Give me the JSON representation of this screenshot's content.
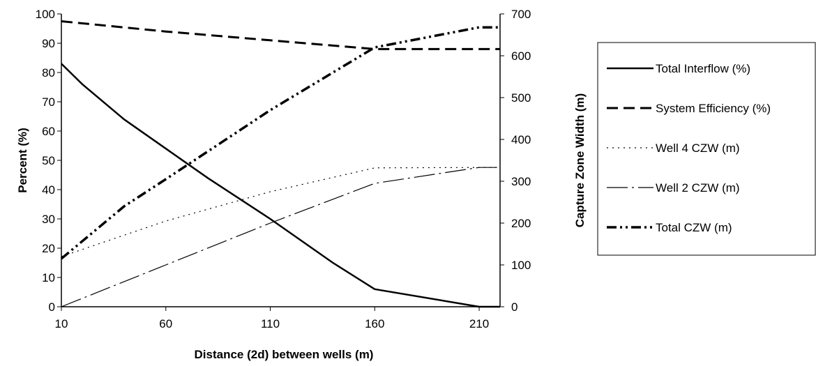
{
  "chart_data": {
    "type": "line",
    "xlabel": "Distance (2d) between wells (m)",
    "ylabel": "Percent (%)",
    "y2label": "Capture Zone Width (m)",
    "xlim": [
      10,
      220
    ],
    "xticks": [
      10,
      60,
      110,
      160,
      210
    ],
    "ylim": [
      0,
      100
    ],
    "yticks": [
      0,
      10,
      20,
      30,
      40,
      50,
      60,
      70,
      80,
      90,
      100
    ],
    "y2lim": [
      0,
      700
    ],
    "y2ticks": [
      0,
      100,
      200,
      300,
      400,
      500,
      600,
      700
    ],
    "grid": false,
    "legend_position": "right",
    "series": [
      {
        "name": "Total Interflow (%)",
        "axis": "left",
        "style": "solid",
        "color": "#000000",
        "x": [
          10,
          20,
          40,
          60,
          80,
          110,
          140,
          160,
          210,
          220
        ],
        "y": [
          83,
          76,
          64,
          54,
          44,
          30,
          15,
          6,
          0,
          0
        ]
      },
      {
        "name": "System Efficiency (%)",
        "axis": "left",
        "style": "dashed",
        "color": "#000000",
        "x": [
          10,
          60,
          110,
          160,
          210,
          220
        ],
        "y": [
          97.5,
          94,
          91,
          88,
          88,
          88
        ]
      },
      {
        "name": "Well 4 CZW (m)",
        "axis": "right",
        "style": "dotted",
        "color": "#000000",
        "x": [
          10,
          60,
          110,
          160,
          210,
          220
        ],
        "y": [
          120,
          205,
          275,
          332,
          333,
          333
        ]
      },
      {
        "name": "Well 2 CZW (m)",
        "axis": "right",
        "style": "dash-dot-long",
        "color": "#000000",
        "x": [
          10,
          60,
          110,
          160,
          210,
          220
        ],
        "y": [
          0,
          100,
          200,
          295,
          333,
          333
        ]
      },
      {
        "name": "Total CZW (m)",
        "axis": "right",
        "style": "dash-dot-dot",
        "color": "#000000",
        "x": [
          10,
          40,
          60,
          110,
          160,
          210,
          220
        ],
        "y": [
          115,
          240,
          305,
          470,
          620,
          668,
          668
        ]
      }
    ]
  }
}
